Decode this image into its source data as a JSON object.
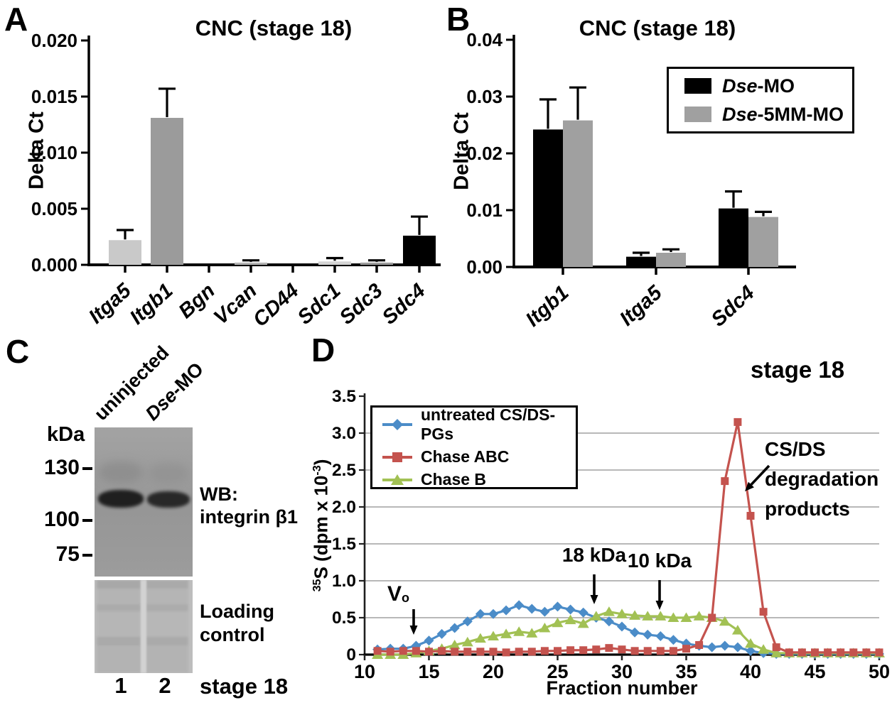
{
  "panels": {
    "A": {
      "label": "A",
      "title": "CNC (stage 18)",
      "ylabel": "Delta Ct"
    },
    "B": {
      "label": "B",
      "title": "CNC (stage 18)",
      "ylabel": "Delta Ct"
    },
    "C": {
      "label": "C",
      "lane_headers": [
        "uninjected",
        "Dse-MO"
      ],
      "unit_label": "kDa",
      "mw_markers": [
        "130",
        "100",
        "75"
      ],
      "wb_lines": [
        "WB:",
        "integrin β1"
      ],
      "loading_lines": [
        "Loading",
        "control"
      ],
      "lane_numbers": [
        "1",
        "2"
      ],
      "stage_label": "stage 18"
    },
    "D": {
      "label": "D",
      "stage_label": "stage 18",
      "xlabel": "Fraction number",
      "ylabel_sup": "35",
      "ylabel_main": "S (dpm x 10",
      "ylabel_exp": "-3",
      "ylabel_end": ")",
      "annotations": {
        "vo_main": "V",
        "vo_sub": "o",
        "kda18": "18 kDa",
        "kda10": "10 kDa",
        "degradation_lines": [
          "CS/DS",
          "degradation",
          "products"
        ]
      }
    }
  },
  "chart_data": [
    {
      "id": "A",
      "type": "bar",
      "title": "CNC (stage 18)",
      "ylabel": "Delta Ct",
      "categories": [
        "Itga5",
        "Itgb1",
        "Bgn",
        "Vcan",
        "CD44",
        "Sdc1",
        "Sdc3",
        "Sdc4"
      ],
      "values": [
        0.0022,
        0.0131,
        0.0,
        0.0002,
        0.0,
        0.0003,
        0.0002,
        0.0026
      ],
      "errors": [
        0.0009,
        0.0026,
        0.0,
        0.0002,
        0.0,
        0.0003,
        0.0002,
        0.0017
      ],
      "bar_colors": [
        "#c9c9c9",
        "#9b9b9b",
        "#777777",
        "#b3b3b3",
        "#777777",
        "#d4d4d4",
        "#9b9b9b",
        "#000000"
      ],
      "ylim": [
        0,
        0.02
      ],
      "yticks": [
        0,
        0.005,
        0.01,
        0.015,
        0.02
      ],
      "ytick_labels": [
        "0.000",
        "0.005",
        "0.010",
        "0.015",
        "0.020"
      ],
      "grid": false
    },
    {
      "id": "B",
      "type": "bar",
      "title": "CNC (stage 18)",
      "ylabel": "Delta Ct",
      "categories": [
        "Itgb1",
        "Itga5",
        "Sdc4"
      ],
      "series": [
        {
          "name": "Dse-MO",
          "color": "#000000",
          "values": [
            0.0242,
            0.0018,
            0.0103
          ],
          "errors": [
            0.0053,
            0.0007,
            0.003
          ]
        },
        {
          "name": "Dse-5MM-MO",
          "color": "#a0a0a0",
          "values": [
            0.0258,
            0.0025,
            0.0088
          ],
          "errors": [
            0.0058,
            0.0006,
            0.0009
          ]
        }
      ],
      "ylim": [
        0,
        0.04
      ],
      "yticks": [
        0,
        0.01,
        0.02,
        0.03,
        0.04
      ],
      "ytick_labels": [
        "0.00",
        "0.01",
        "0.02",
        "0.03",
        "0.04"
      ],
      "legend_position": "top-right",
      "grid": false
    },
    {
      "id": "D",
      "type": "line",
      "title": "stage 18",
      "xlabel": "Fraction number",
      "ylabel": "35S (dpm x 10-3)",
      "xlim": [
        10,
        50
      ],
      "ylim": [
        0,
        3.5
      ],
      "xticks": [
        10,
        15,
        20,
        25,
        30,
        35,
        40,
        45,
        50
      ],
      "yticks": [
        0,
        0.5,
        1.0,
        1.5,
        2.0,
        2.5,
        3.0,
        3.5
      ],
      "ytick_labels": [
        "0",
        "0.5",
        "1.0",
        "1.5",
        "2.0",
        "2.5",
        "3.0",
        "3.5"
      ],
      "grid": true,
      "legend_position": "top-left",
      "annotations": [
        "Vo",
        "18 kDa",
        "10 kDa",
        "CS/DS degradation products"
      ],
      "x": [
        11,
        12,
        13,
        14,
        15,
        16,
        17,
        18,
        19,
        20,
        21,
        22,
        23,
        24,
        25,
        26,
        27,
        28,
        29,
        30,
        31,
        32,
        33,
        34,
        35,
        36,
        37,
        38,
        39,
        40,
        41,
        42,
        43,
        44,
        45,
        46,
        47,
        48,
        49,
        50
      ],
      "series": [
        {
          "name": "untreated CS/DS-PGs",
          "color": "#4b8cc8",
          "marker": "diamond",
          "values": [
            0.07,
            0.08,
            0.08,
            0.12,
            0.19,
            0.28,
            0.36,
            0.45,
            0.55,
            0.55,
            0.6,
            0.67,
            0.62,
            0.58,
            0.65,
            0.61,
            0.57,
            0.5,
            0.45,
            0.38,
            0.3,
            0.27,
            0.25,
            0.2,
            0.15,
            0.12,
            0.1,
            0.12,
            0.1,
            0.05,
            0.02,
            0.01,
            0.01,
            0.01,
            0.01,
            0.01,
            0.01,
            0.01,
            0.01,
            0.01
          ]
        },
        {
          "name": "Chase ABC",
          "color": "#c4534e",
          "marker": "square",
          "values": [
            0.05,
            0.04,
            0.05,
            0.05,
            0.04,
            0.05,
            0.04,
            0.04,
            0.04,
            0.04,
            0.03,
            0.04,
            0.04,
            0.05,
            0.05,
            0.06,
            0.06,
            0.07,
            0.09,
            0.07,
            0.05,
            0.05,
            0.05,
            0.05,
            0.08,
            0.13,
            0.5,
            2.35,
            3.15,
            1.88,
            0.58,
            0.1,
            0.03,
            0.03,
            0.03,
            0.03,
            0.03,
            0.03,
            0.03,
            0.03
          ]
        },
        {
          "name": "Chase B",
          "color": "#a2c154",
          "marker": "triangle",
          "values": [
            0.0,
            0.0,
            0.0,
            0.02,
            0.05,
            0.08,
            0.13,
            0.17,
            0.22,
            0.25,
            0.28,
            0.31,
            0.29,
            0.36,
            0.43,
            0.47,
            0.42,
            0.52,
            0.58,
            0.55,
            0.53,
            0.52,
            0.52,
            0.5,
            0.5,
            0.52,
            0.5,
            0.45,
            0.33,
            0.15,
            0.07,
            0.02,
            0.02,
            0.02,
            0.02,
            0.02,
            0.02,
            0.02,
            0.02,
            0.02
          ]
        }
      ]
    }
  ]
}
